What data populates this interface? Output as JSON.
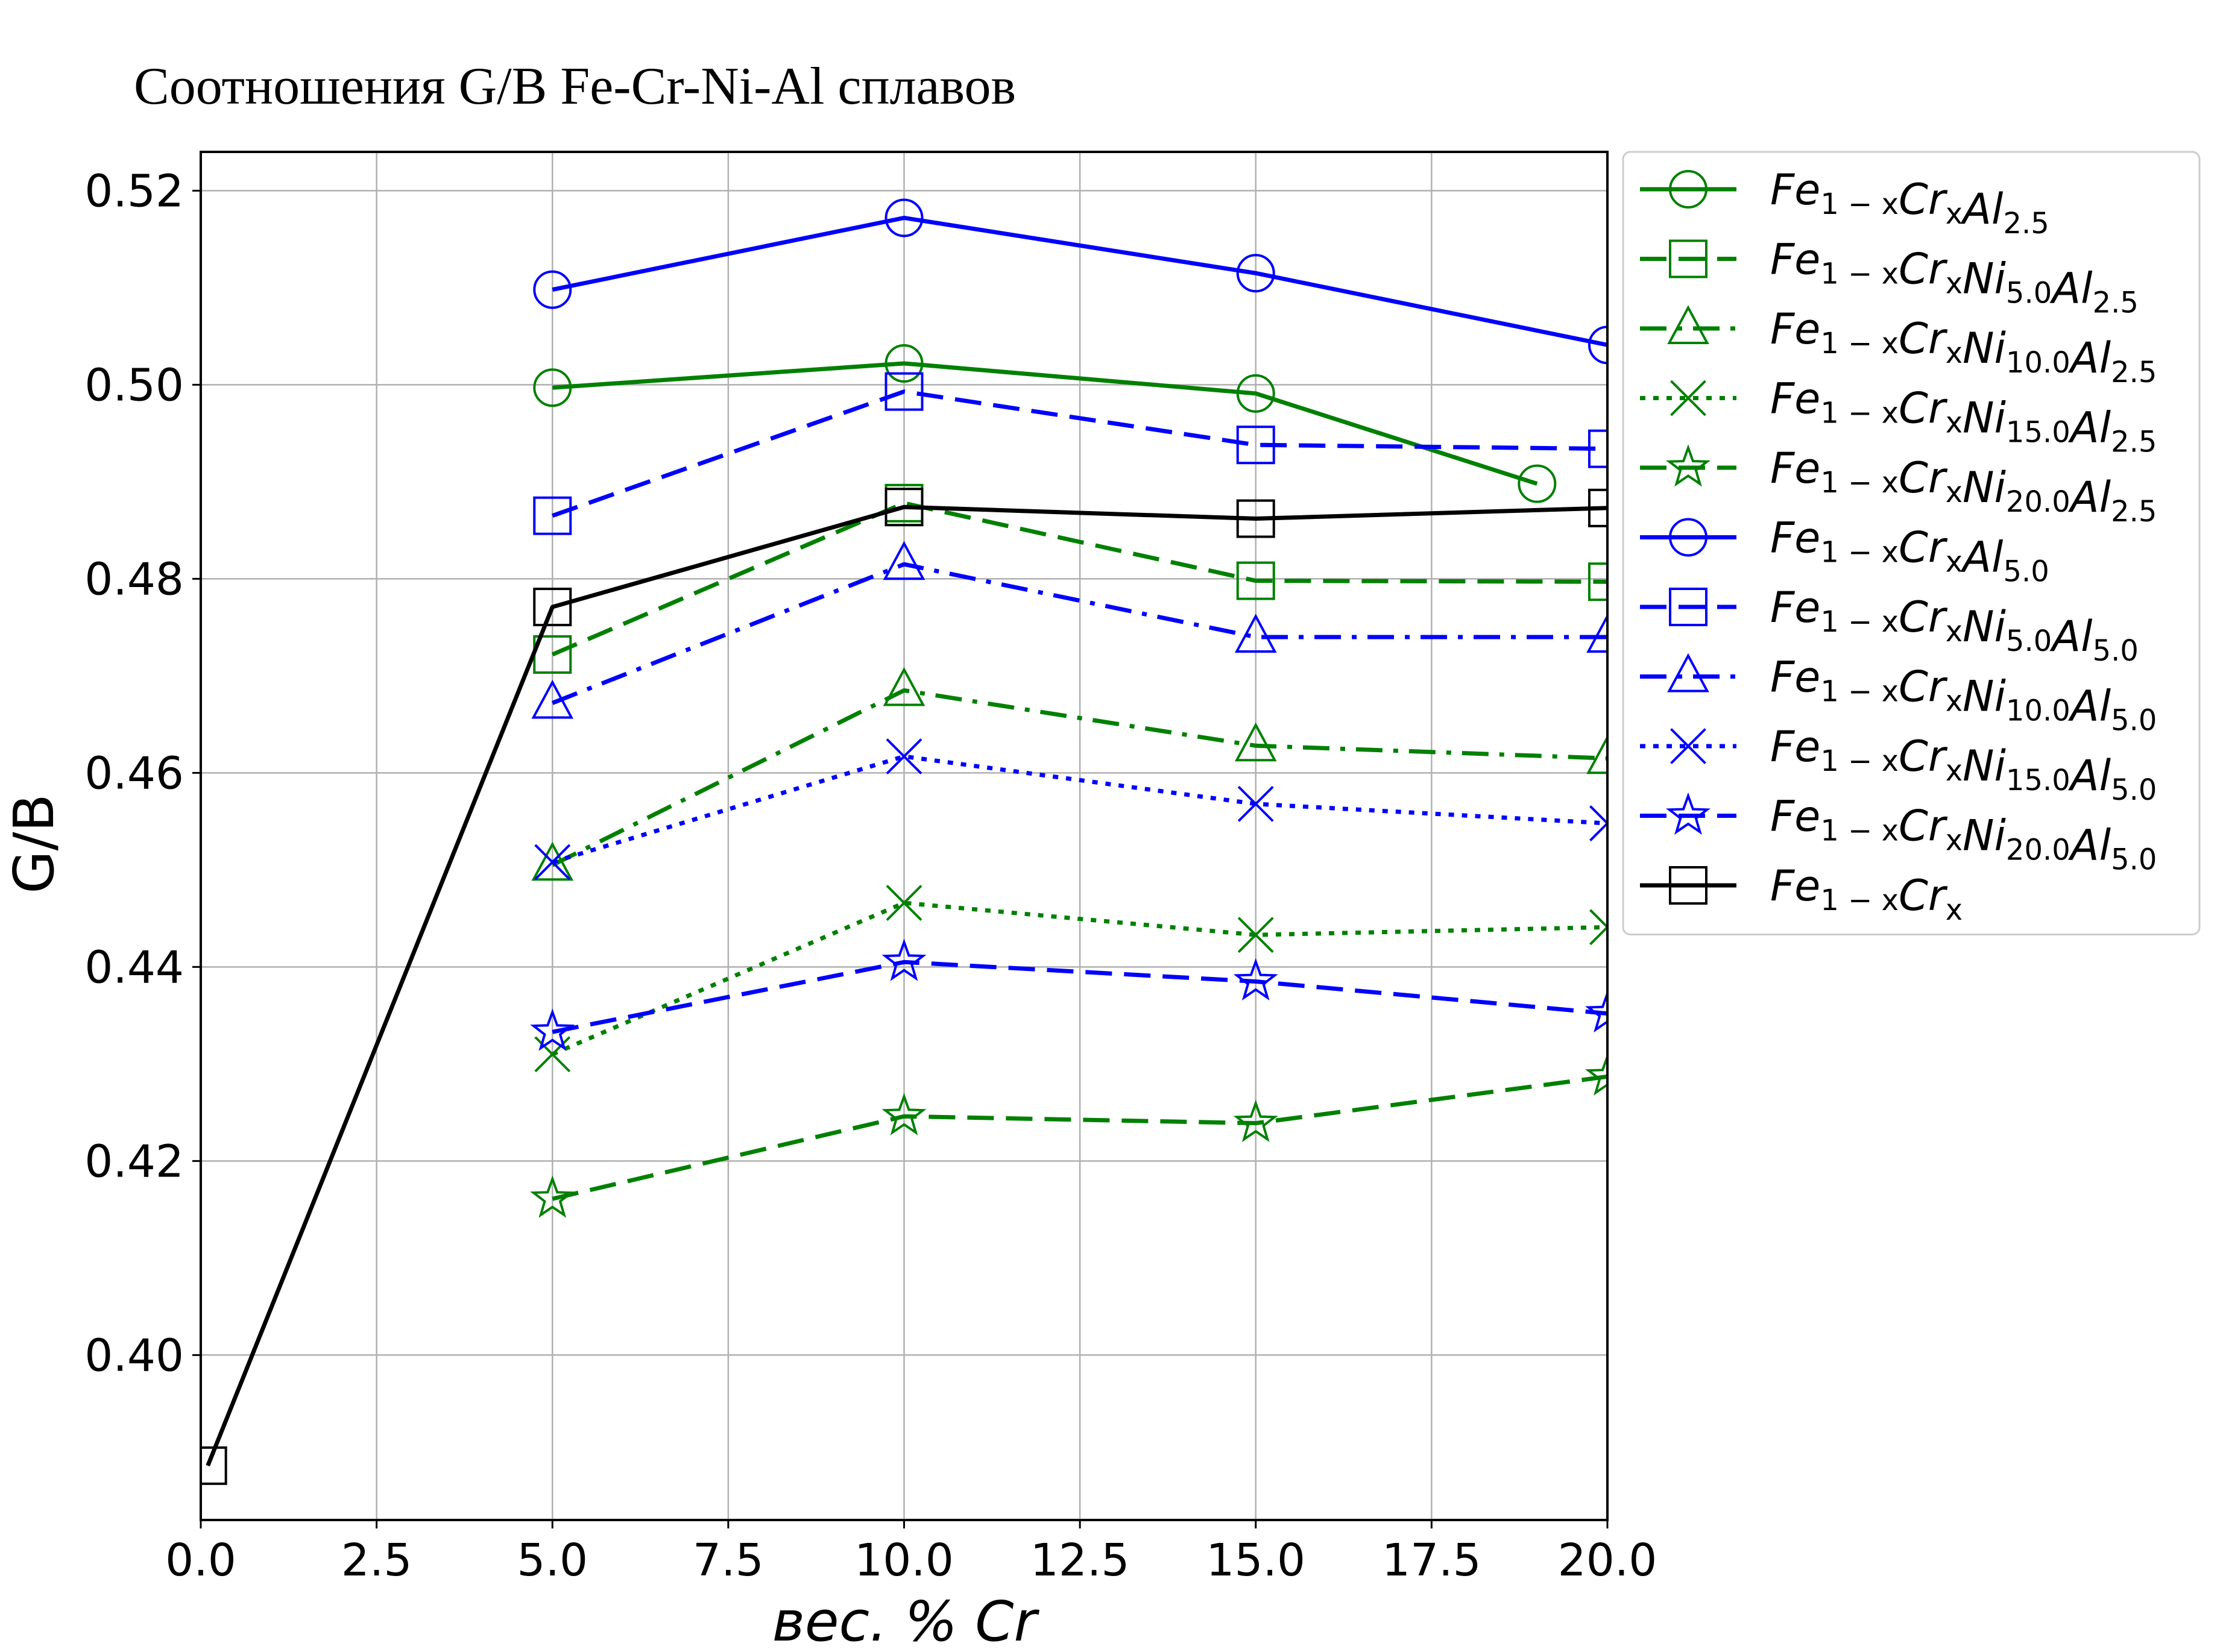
{
  "chart_data": {
    "type": "line",
    "title": "Соотношения G/B Fe-Cr-Ni-Al сплавов",
    "xlabel": "вес. % Cr",
    "ylabel": "G/B",
    "xlim": [
      0,
      20
    ],
    "ylim": [
      0.383,
      0.524
    ],
    "x_ticks": [
      0,
      2.5,
      5,
      7.5,
      10,
      12.5,
      15,
      17.5,
      20
    ],
    "x_tick_labels": [
      "0.0",
      "2.5",
      "5.0",
      "7.5",
      "10.0",
      "12.5",
      "15.0",
      "17.5",
      "20.0"
    ],
    "y_ticks": [
      0.4,
      0.42,
      0.44,
      0.46,
      0.48,
      0.5,
      0.52
    ],
    "y_tick_labels": [
      "0.40",
      "0.42",
      "0.44",
      "0.46",
      "0.48",
      "0.50",
      "0.52"
    ],
    "grid": true,
    "legend_position": "outside right, top",
    "series": [
      {
        "name": "Fe1−xCrxAl2.5",
        "legend_base": [
          "Fe",
          "Cr",
          "Al"
        ],
        "legend_subs": [
          "1 − x",
          "x",
          "2.5"
        ],
        "color": "#008000",
        "dash": "solid",
        "marker": "circle",
        "x": [
          5,
          10,
          15,
          19
        ],
        "values": [
          0.4997,
          0.5022,
          0.4991,
          0.4898
        ]
      },
      {
        "name": "Fe1−xCrxNi5.0Al2.5",
        "legend_base": [
          "Fe",
          "Cr",
          "Ni",
          "Al"
        ],
        "legend_subs": [
          "1 − x",
          "x",
          "5.0",
          "2.5"
        ],
        "color": "#008000",
        "dash": "dashed",
        "marker": "square",
        "x": [
          5,
          10,
          15,
          20
        ],
        "values": [
          0.4722,
          0.4878,
          0.4798,
          0.4797
        ]
      },
      {
        "name": "Fe1−xCrxNi10.0Al2.5",
        "legend_base": [
          "Fe",
          "Cr",
          "Ni",
          "Al"
        ],
        "legend_subs": [
          "1 − x",
          "x",
          "10.0",
          "2.5"
        ],
        "color": "#008000",
        "dash": "dashdot",
        "marker": "triangle",
        "x": [
          5,
          10,
          15,
          20
        ],
        "values": [
          0.4505,
          0.4685,
          0.4628,
          0.4615
        ]
      },
      {
        "name": "Fe1−xCrxNi15.0Al2.5",
        "legend_base": [
          "Fe",
          "Cr",
          "Ni",
          "Al"
        ],
        "legend_subs": [
          "1 − x",
          "x",
          "15.0",
          "2.5"
        ],
        "color": "#008000",
        "dash": "dotted",
        "marker": "x",
        "x": [
          5,
          10,
          15,
          20
        ],
        "values": [
          0.431,
          0.4466,
          0.4433,
          0.4441
        ]
      },
      {
        "name": "Fe1−xCrxNi20.0Al2.5",
        "legend_base": [
          "Fe",
          "Cr",
          "Ni",
          "Al"
        ],
        "legend_subs": [
          "1 − x",
          "x",
          "20.0",
          "2.5"
        ],
        "color": "#008000",
        "dash": "dashed",
        "marker": "star",
        "x": [
          5,
          10,
          15,
          20
        ],
        "values": [
          0.4161,
          0.4246,
          0.4239,
          0.4287
        ]
      },
      {
        "name": "Fe1−xCrxAl5.0",
        "legend_base": [
          "Fe",
          "Cr",
          "Al"
        ],
        "legend_subs": [
          "1 − x",
          "x",
          "5.0"
        ],
        "color": "#0000ff",
        "dash": "solid",
        "marker": "circle",
        "x": [
          5,
          10,
          15,
          20
        ],
        "values": [
          0.5098,
          0.5172,
          0.5115,
          0.5041
        ]
      },
      {
        "name": "Fe1−xCrxNi5.0Al5.0",
        "legend_base": [
          "Fe",
          "Cr",
          "Ni",
          "Al"
        ],
        "legend_subs": [
          "1 − x",
          "x",
          "5.0",
          "5.0"
        ],
        "color": "#0000ff",
        "dash": "dashed",
        "marker": "square",
        "x": [
          5,
          10,
          15,
          20
        ],
        "values": [
          0.4865,
          0.4993,
          0.4938,
          0.4934
        ]
      },
      {
        "name": "Fe1−xCrxNi10.0Al5.0",
        "legend_base": [
          "Fe",
          "Cr",
          "Ni",
          "Al"
        ],
        "legend_subs": [
          "1 − x",
          "x",
          "10.0",
          "5.0"
        ],
        "color": "#0000ff",
        "dash": "dashdot",
        "marker": "triangle",
        "x": [
          5,
          10,
          15,
          20
        ],
        "values": [
          0.4672,
          0.4815,
          0.474,
          0.474
        ]
      },
      {
        "name": "Fe1−xCrxNi15.0Al5.0",
        "legend_base": [
          "Fe",
          "Cr",
          "Ni",
          "Al"
        ],
        "legend_subs": [
          "1 − x",
          "x",
          "15.0",
          "5.0"
        ],
        "color": "#0000ff",
        "dash": "dotted",
        "marker": "x",
        "x": [
          5,
          10,
          15,
          20
        ],
        "values": [
          0.4508,
          0.4617,
          0.4568,
          0.4548
        ]
      },
      {
        "name": "Fe1−xCrxNi20.0Al5.0",
        "legend_base": [
          "Fe",
          "Cr",
          "Ni",
          "Al"
        ],
        "legend_subs": [
          "1 − x",
          "x",
          "20.0",
          "5.0"
        ],
        "color": "#0000ff",
        "dash": "dashed",
        "marker": "star",
        "x": [
          5,
          10,
          15,
          20
        ],
        "values": [
          0.4333,
          0.4405,
          0.4385,
          0.4352
        ]
      },
      {
        "name": "Fe1−xCrx",
        "legend_base": [
          "Fe",
          "Cr"
        ],
        "legend_subs": [
          "1 − x",
          "x"
        ],
        "color": "#000000",
        "dash": "solid",
        "marker": "square",
        "x": [
          0.1,
          5,
          10,
          15,
          20
        ],
        "values": [
          0.3886,
          0.4771,
          0.4874,
          0.4862,
          0.4873
        ]
      }
    ]
  }
}
